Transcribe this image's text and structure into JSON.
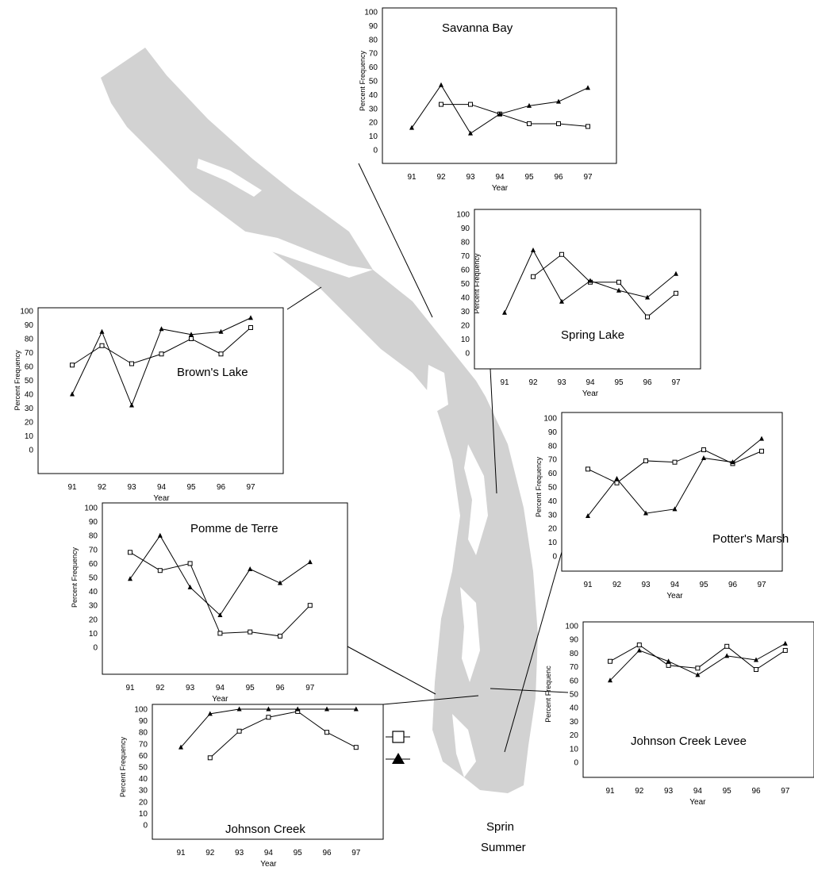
{
  "colors": {
    "map_fill": "#d2d2d2",
    "line": "#000000",
    "background": "#ffffff"
  },
  "legend": {
    "spring_label": "Sprin",
    "summer_label": "Summer",
    "spring_marker": "open-square-icon",
    "summer_marker": "filled-triangle-icon"
  },
  "chart_data": [
    {
      "type": "line",
      "title": "Savanna Bay",
      "xlabel": "Year",
      "ylabel": "Percent Frequency",
      "x": [
        "91",
        "92",
        "93",
        "94",
        "95",
        "96",
        "97"
      ],
      "ylim": [
        0,
        100
      ],
      "yticks": [
        "0",
        "10",
        "20",
        "30",
        "40",
        "50",
        "60",
        "70",
        "80",
        "90",
        "100"
      ],
      "series": [
        {
          "marker": "square",
          "values": [
            null,
            33,
            33,
            26,
            19,
            19,
            17
          ]
        },
        {
          "marker": "triangle",
          "values": [
            16,
            47,
            12,
            26,
            32,
            35,
            45
          ]
        }
      ]
    },
    {
      "type": "line",
      "title": "Spring Lake",
      "xlabel": "Year",
      "ylabel": "Percent Frequency",
      "x": [
        "91",
        "92",
        "93",
        "94",
        "95",
        "96",
        "97"
      ],
      "ylim": [
        0,
        100
      ],
      "yticks": [
        "0",
        "10",
        "20",
        "30",
        "40",
        "50",
        "60",
        "70",
        "80",
        "90",
        "100"
      ],
      "series": [
        {
          "marker": "square",
          "values": [
            null,
            55,
            71,
            51,
            51,
            26,
            43
          ]
        },
        {
          "marker": "triangle",
          "values": [
            29,
            74,
            37,
            52,
            45,
            40,
            57
          ]
        }
      ]
    },
    {
      "type": "line",
      "title": "Brown's Lake",
      "xlabel": "Year",
      "ylabel": "Percent Frequency",
      "x": [
        "91",
        "92",
        "93",
        "94",
        "95",
        "96",
        "97"
      ],
      "ylim": [
        0,
        100
      ],
      "yticks": [
        "0",
        "10",
        "20",
        "30",
        "40",
        "50",
        "60",
        "70",
        "80",
        "90",
        "100"
      ],
      "series": [
        {
          "marker": "square",
          "values": [
            61,
            75,
            62,
            69,
            80,
            69,
            88
          ]
        },
        {
          "marker": "triangle",
          "values": [
            40,
            85,
            32,
            87,
            83,
            85,
            95
          ]
        }
      ]
    },
    {
      "type": "line",
      "title": "Potter's Marsh",
      "xlabel": "Year",
      "ylabel": "Percent Frequency",
      "x": [
        "91",
        "92",
        "93",
        "94",
        "95",
        "96",
        "97"
      ],
      "ylim": [
        0,
        100
      ],
      "yticks": [
        "0",
        "10",
        "20",
        "30",
        "40",
        "50",
        "60",
        "70",
        "80",
        "90",
        "100"
      ],
      "series": [
        {
          "marker": "square",
          "values": [
            63,
            53,
            69,
            68,
            77,
            67,
            76
          ]
        },
        {
          "marker": "triangle",
          "values": [
            29,
            56,
            31,
            34,
            71,
            68,
            85
          ]
        }
      ]
    },
    {
      "type": "line",
      "title": "Pomme de Terre",
      "xlabel": "Year",
      "ylabel": "Percent Frequency",
      "x": [
        "91",
        "92",
        "93",
        "94",
        "95",
        "96",
        "97"
      ],
      "ylim": [
        0,
        100
      ],
      "yticks": [
        "0",
        "10",
        "20",
        "30",
        "40",
        "50",
        "60",
        "70",
        "80",
        "90",
        "100"
      ],
      "series": [
        {
          "marker": "square",
          "values": [
            68,
            55,
            60,
            10,
            11,
            8,
            30
          ]
        },
        {
          "marker": "triangle",
          "values": [
            49,
            80,
            43,
            23,
            56,
            46,
            61
          ]
        }
      ]
    },
    {
      "type": "line",
      "title": "Johnson Creek Levee",
      "xlabel": "Year",
      "ylabel": "Percent Frequenc",
      "x": [
        "91",
        "92",
        "93",
        "94",
        "95",
        "96",
        "97"
      ],
      "ylim": [
        0,
        100
      ],
      "yticks": [
        "0",
        "10",
        "20",
        "30",
        "40",
        "50",
        "60",
        "70",
        "80",
        "90",
        "100"
      ],
      "series": [
        {
          "marker": "square",
          "values": [
            74,
            86,
            71,
            69,
            85,
            68,
            82
          ]
        },
        {
          "marker": "triangle",
          "values": [
            60,
            82,
            74,
            64,
            78,
            75,
            87
          ]
        }
      ]
    },
    {
      "type": "line",
      "title": "Johnson Creek",
      "xlabel": "Year",
      "ylabel": "Percent Frequency",
      "x": [
        "91",
        "92",
        "93",
        "94",
        "95",
        "96",
        "97"
      ],
      "ylim": [
        0,
        100
      ],
      "yticks": [
        "0",
        "10",
        "20",
        "30",
        "40",
        "50",
        "60",
        "70",
        "80",
        "90",
        "100"
      ],
      "series": [
        {
          "marker": "square",
          "values": [
            null,
            58,
            81,
            93,
            98,
            80,
            67
          ]
        },
        {
          "marker": "triangle",
          "values": [
            67,
            96,
            100,
            100,
            100,
            100,
            100
          ]
        }
      ]
    }
  ]
}
